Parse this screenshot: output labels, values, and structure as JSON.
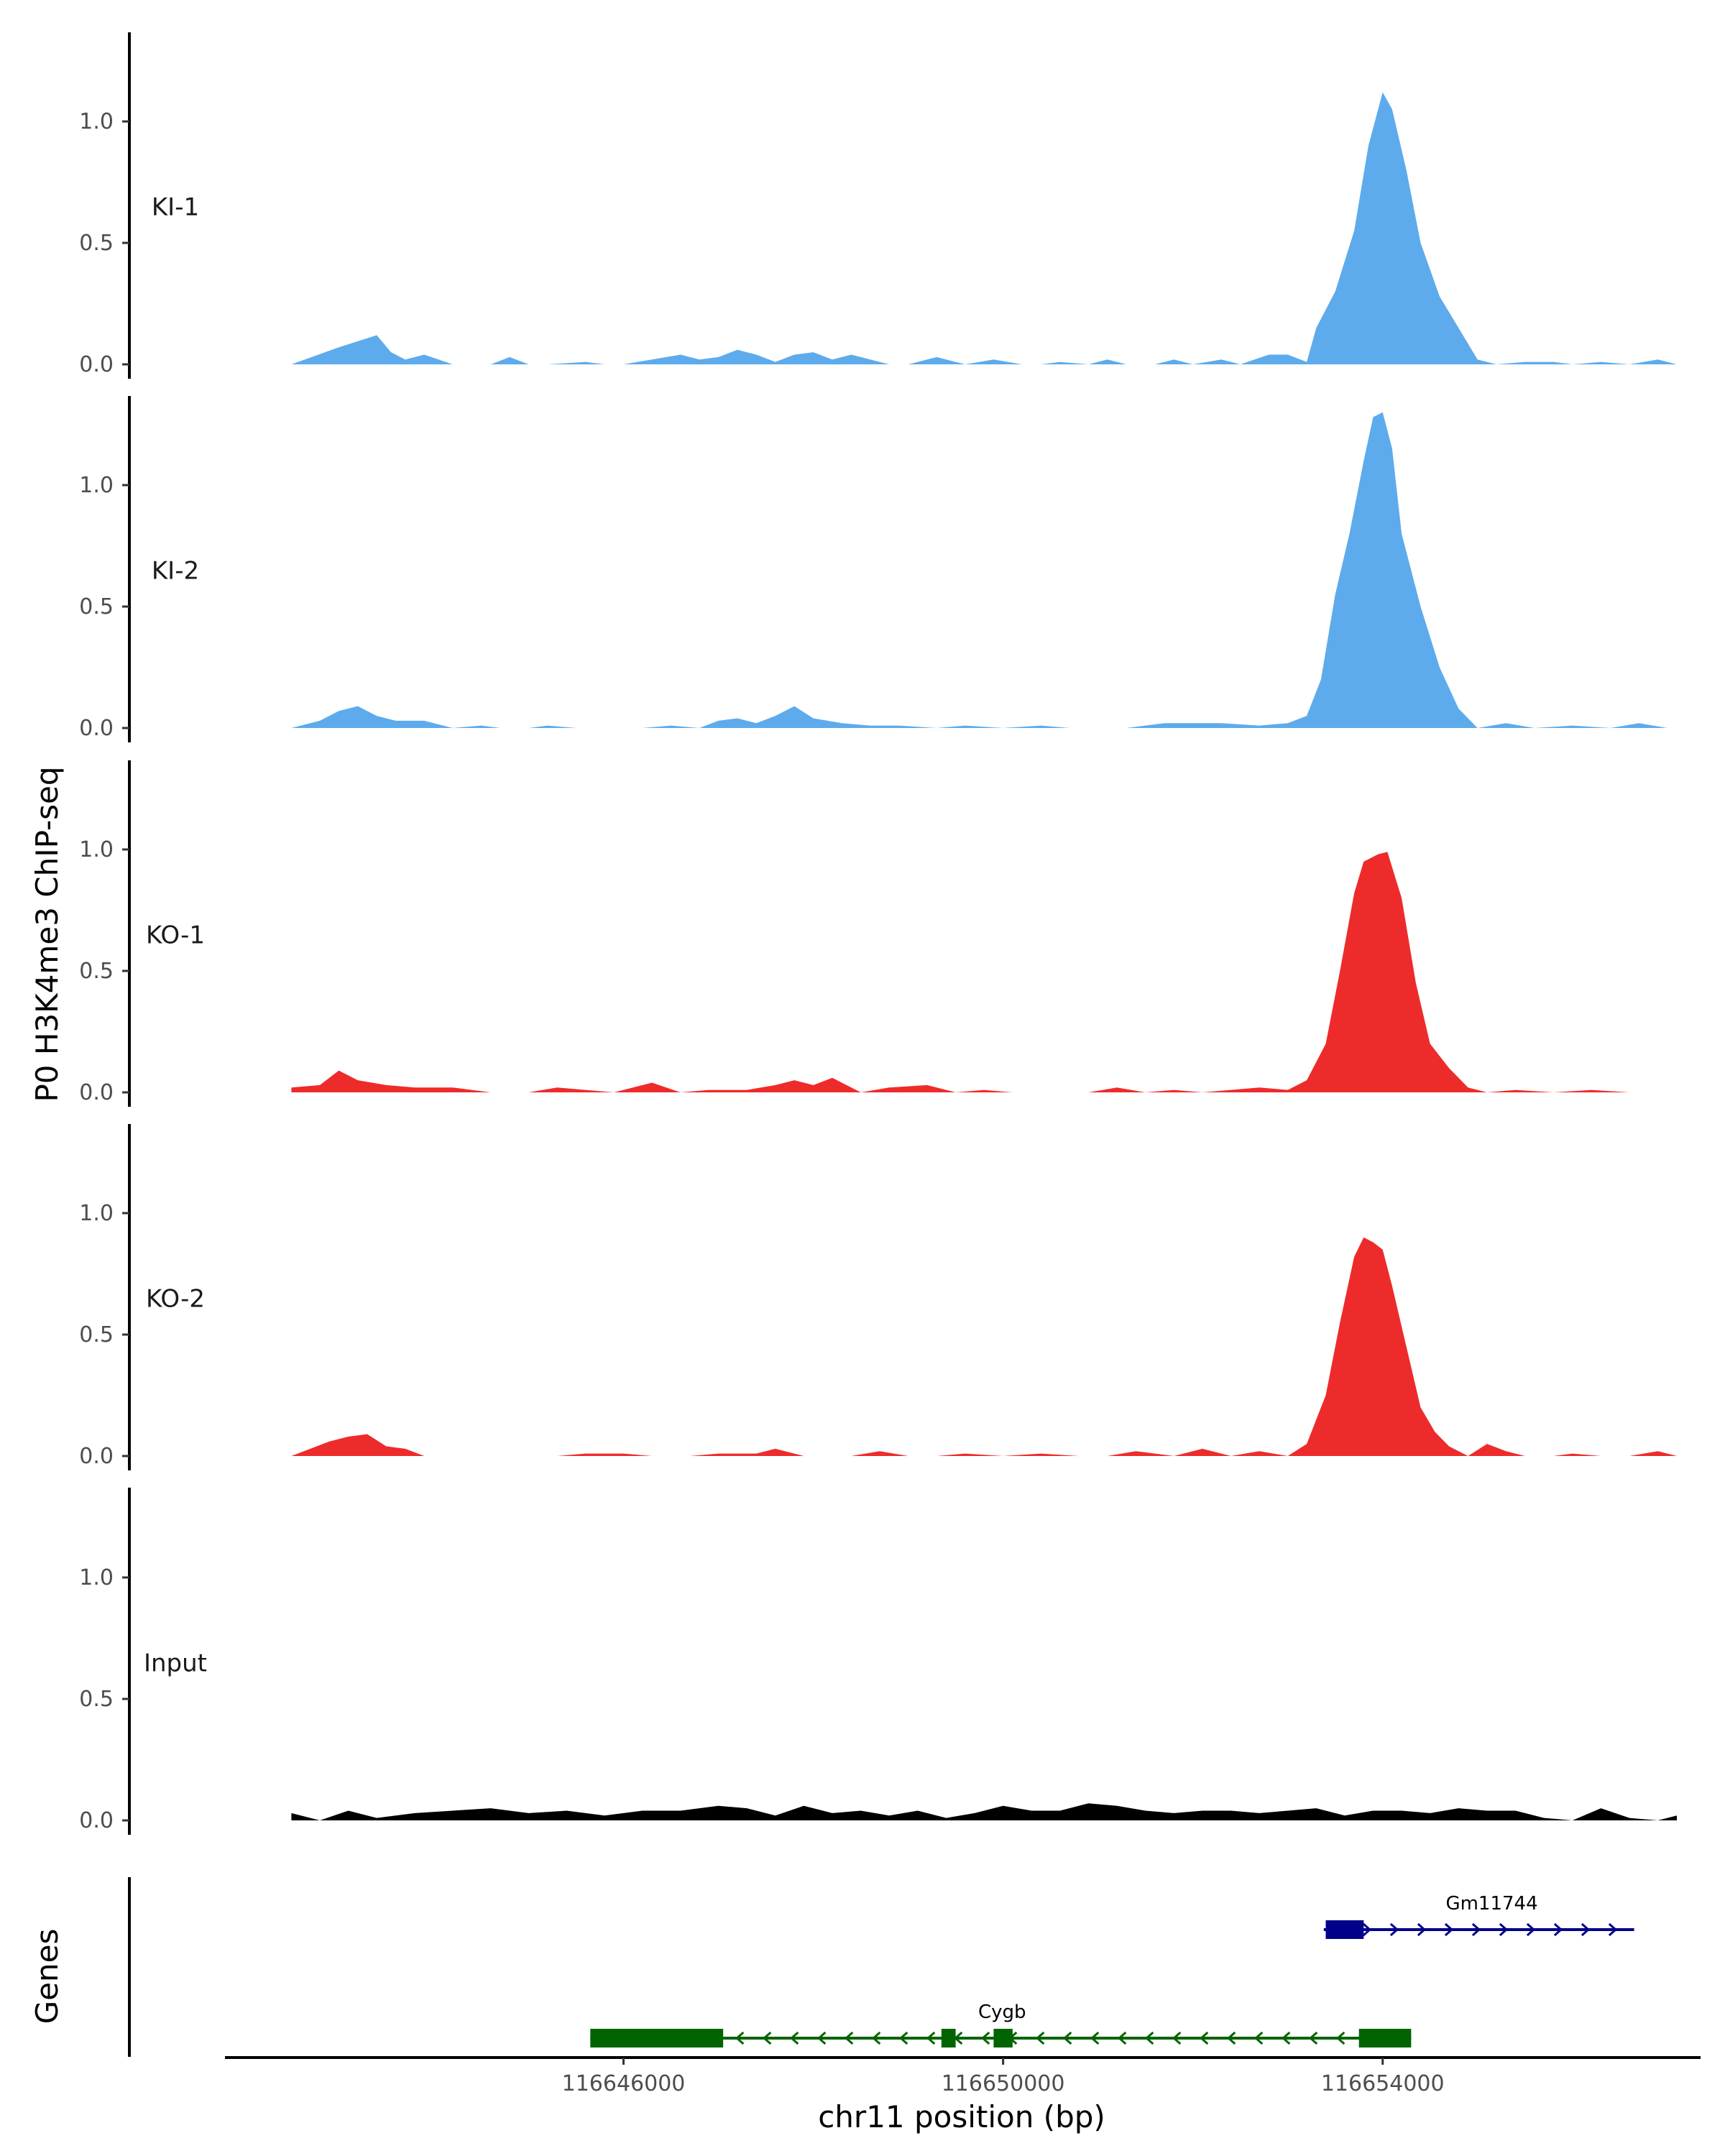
{
  "chart_data": {
    "type": "area",
    "title": "",
    "ylabel": "P0 H3K4me3 ChIP-seq",
    "xlabel": "chr11 position (bp)",
    "ylim": [
      0,
      1.35
    ],
    "xlim": [
      116641800,
      116657350
    ],
    "y_ticks": [
      {
        "value": 0.0,
        "label": "0.0"
      },
      {
        "value": 0.5,
        "label": "0.5"
      },
      {
        "value": 1.0,
        "label": "1.0"
      }
    ],
    "x_ticks": [
      {
        "value": 116646000,
        "label": "116646000"
      },
      {
        "value": 116650000,
        "label": "116650000"
      },
      {
        "value": 116654000,
        "label": "116654000"
      }
    ],
    "tracks": [
      {
        "name": "KI-1",
        "color": "#5DABEC",
        "x": [
          116642500,
          116643000,
          116643400,
          116643550,
          116643700,
          116643900,
          116644200,
          116644600,
          116644800,
          116645000,
          116645200,
          116645600,
          116645800,
          116646000,
          116646300,
          116646600,
          116646800,
          116647000,
          116647200,
          116647400,
          116647600,
          116647800,
          116648000,
          116648200,
          116648400,
          116648600,
          116648800,
          116649000,
          116649300,
          116649600,
          116649900,
          116650200,
          116650400,
          116650600,
          116650900,
          116651100,
          116651300,
          116651600,
          116651800,
          116652000,
          116652300,
          116652500,
          116652800,
          116653000,
          116653200,
          116653300,
          116653500,
          116653700,
          116653850,
          116654000,
          116654100,
          116654250,
          116654400,
          116654600,
          116654800,
          116655000,
          116655200,
          116655500,
          116655800,
          116656000,
          116656300,
          116656600,
          116656900,
          116657100
        ],
        "values": [
          0.0,
          0.07,
          0.12,
          0.05,
          0.02,
          0.04,
          0.0,
          0.0,
          0.03,
          0.0,
          0.0,
          0.01,
          0.0,
          0.0,
          0.02,
          0.04,
          0.02,
          0.03,
          0.06,
          0.04,
          0.01,
          0.04,
          0.05,
          0.02,
          0.04,
          0.02,
          0.0,
          0.0,
          0.03,
          0.0,
          0.02,
          0.0,
          0.0,
          0.01,
          0.0,
          0.02,
          0.0,
          0.0,
          0.02,
          0.0,
          0.02,
          0.0,
          0.04,
          0.04,
          0.01,
          0.15,
          0.3,
          0.55,
          0.9,
          1.12,
          1.05,
          0.8,
          0.5,
          0.28,
          0.15,
          0.02,
          0.0,
          0.01,
          0.01,
          0.0,
          0.01,
          0.0,
          0.02,
          0.0
        ]
      },
      {
        "name": "KI-2",
        "color": "#5DABEC",
        "x": [
          116642500,
          116642800,
          116643000,
          116643200,
          116643400,
          116643600,
          116643900,
          116644200,
          116644500,
          116644700,
          116645000,
          116645200,
          116645500,
          116645800,
          116646200,
          116646500,
          116646800,
          116647000,
          116647200,
          116647400,
          116647600,
          116647800,
          116648000,
          116648300,
          116648600,
          116648900,
          116649300,
          116649600,
          116650000,
          116650400,
          116650700,
          116651000,
          116651300,
          116651700,
          116652000,
          116652300,
          116652700,
          116653000,
          116653200,
          116653350,
          116653500,
          116653650,
          116653800,
          116653900,
          116654000,
          116654100,
          116654200,
          116654400,
          116654600,
          116654800,
          116655000,
          116655300,
          116655600,
          116656000,
          116656400,
          116656700,
          116657000
        ],
        "values": [
          0.0,
          0.03,
          0.07,
          0.09,
          0.05,
          0.03,
          0.03,
          0.0,
          0.01,
          0.0,
          0.0,
          0.01,
          0.0,
          0.0,
          0.0,
          0.01,
          0.0,
          0.03,
          0.04,
          0.02,
          0.05,
          0.09,
          0.04,
          0.02,
          0.01,
          0.01,
          0.0,
          0.01,
          0.0,
          0.01,
          0.0,
          0.0,
          0.0,
          0.02,
          0.02,
          0.02,
          0.01,
          0.02,
          0.05,
          0.2,
          0.55,
          0.8,
          1.1,
          1.28,
          1.3,
          1.15,
          0.8,
          0.5,
          0.25,
          0.08,
          0.0,
          0.02,
          0.0,
          0.01,
          0.0,
          0.02,
          0.0
        ]
      },
      {
        "name": "KO-1",
        "color": "#EE2B2B",
        "x": [
          116642500,
          116642800,
          116643000,
          116643200,
          116643500,
          116643800,
          116644200,
          116644600,
          116645000,
          116645300,
          116645600,
          116645900,
          116646300,
          116646600,
          116646900,
          116647300,
          116647600,
          116647800,
          116648000,
          116648200,
          116648500,
          116648800,
          116649200,
          116649500,
          116649800,
          116650100,
          116650500,
          116650900,
          116651200,
          116651500,
          116651800,
          116652100,
          116652400,
          116652700,
          116653000,
          116653200,
          116653400,
          116653550,
          116653700,
          116653800,
          116653950,
          116654050,
          116654200,
          116654350,
          116654500,
          116654700,
          116654900,
          116655100,
          116655400,
          116655800,
          116656200,
          116656600,
          116657000
        ],
        "values": [
          0.02,
          0.03,
          0.09,
          0.05,
          0.03,
          0.02,
          0.02,
          0.0,
          0.0,
          0.02,
          0.01,
          0.0,
          0.04,
          0.0,
          0.01,
          0.01,
          0.03,
          0.05,
          0.03,
          0.06,
          0.0,
          0.02,
          0.03,
          0.0,
          0.01,
          0.0,
          0.0,
          0.0,
          0.02,
          0.0,
          0.01,
          0.0,
          0.01,
          0.02,
          0.01,
          0.05,
          0.2,
          0.5,
          0.82,
          0.95,
          0.98,
          0.99,
          0.8,
          0.45,
          0.2,
          0.1,
          0.02,
          0.0,
          0.01,
          0.0,
          0.01,
          0.0,
          0.0
        ]
      },
      {
        "name": "KO-2",
        "color": "#EE2B2B",
        "x": [
          116642500,
          116642700,
          116642900,
          116643100,
          116643300,
          116643500,
          116643700,
          116643900,
          116644100,
          116644400,
          116644800,
          116645300,
          116645600,
          116646000,
          116646300,
          116646700,
          116647000,
          116647400,
          116647600,
          116647900,
          116648100,
          116648400,
          116648700,
          116649000,
          116649300,
          116649600,
          116650000,
          116650400,
          116650800,
          116651100,
          116651400,
          116651800,
          116652100,
          116652400,
          116652700,
          116653000,
          116653200,
          116653400,
          116653550,
          116653700,
          116653800,
          116653900,
          116654000,
          116654100,
          116654250,
          116654400,
          116654550,
          116654700,
          116654900,
          116655100,
          116655300,
          116655500,
          116655800,
          116656000,
          116656300,
          116656600,
          116656900,
          116657100
        ],
        "values": [
          0.0,
          0.03,
          0.06,
          0.08,
          0.09,
          0.04,
          0.03,
          0.0,
          0.0,
          0.0,
          0.0,
          0.0,
          0.01,
          0.01,
          0.0,
          0.0,
          0.01,
          0.01,
          0.03,
          0.0,
          0.0,
          0.0,
          0.02,
          0.0,
          0.0,
          0.01,
          0.0,
          0.01,
          0.0,
          0.0,
          0.02,
          0.0,
          0.03,
          0.0,
          0.02,
          0.0,
          0.05,
          0.25,
          0.55,
          0.82,
          0.9,
          0.88,
          0.85,
          0.7,
          0.45,
          0.2,
          0.1,
          0.04,
          0.0,
          0.05,
          0.02,
          0.0,
          0.0,
          0.01,
          0.0,
          0.0,
          0.02,
          0.0
        ]
      },
      {
        "name": "Input",
        "color": "#000000",
        "x": [
          116642500,
          116642800,
          116643100,
          116643400,
          116643800,
          116644200,
          116644600,
          116645000,
          116645400,
          116645800,
          116646200,
          116646600,
          116647000,
          116647300,
          116647600,
          116647900,
          116648200,
          116648500,
          116648800,
          116649100,
          116649400,
          116649700,
          116650000,
          116650300,
          116650600,
          116650900,
          116651200,
          116651500,
          116651800,
          116652100,
          116652400,
          116652700,
          116653000,
          116653300,
          116653600,
          116653900,
          116654200,
          116654500,
          116654800,
          116655100,
          116655400,
          116655700,
          116656000,
          116656300,
          116656600,
          116656900,
          116657100
        ],
        "values": [
          0.03,
          0.0,
          0.04,
          0.01,
          0.03,
          0.04,
          0.05,
          0.03,
          0.04,
          0.02,
          0.04,
          0.04,
          0.06,
          0.05,
          0.02,
          0.06,
          0.03,
          0.04,
          0.02,
          0.04,
          0.01,
          0.03,
          0.06,
          0.04,
          0.04,
          0.07,
          0.06,
          0.04,
          0.03,
          0.04,
          0.04,
          0.03,
          0.04,
          0.05,
          0.02,
          0.04,
          0.04,
          0.03,
          0.05,
          0.04,
          0.04,
          0.01,
          0.0,
          0.05,
          0.01,
          0.0,
          0.02
        ]
      }
    ],
    "genes_track": {
      "label": "Genes",
      "genes": [
        {
          "name": "Gm11744",
          "strand": "+",
          "color": "#00008B",
          "start": 116653380,
          "end": 116656650,
          "exons": [
            [
              116653400,
              116653800
            ]
          ]
        },
        {
          "name": "Cygb",
          "strand": "-",
          "color": "#006400",
          "start": 116645650,
          "end": 116654300,
          "exons": [
            [
              116645650,
              116647050
            ],
            [
              116649350,
              116649500
            ],
            [
              116649900,
              116650100
            ],
            [
              116653750,
              116654300
            ]
          ]
        }
      ]
    }
  }
}
